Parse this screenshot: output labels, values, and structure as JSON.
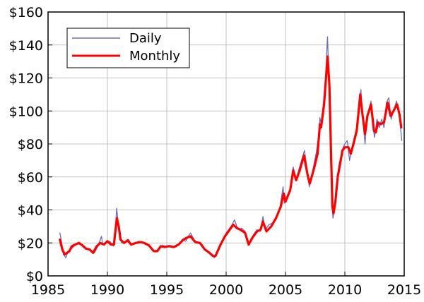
{
  "chart_data": {
    "type": "line",
    "title": "",
    "xlabel": "",
    "ylabel": "",
    "xlim": [
      1985,
      2015
    ],
    "ylim": [
      0,
      160
    ],
    "x_ticks": [
      1985,
      1990,
      1995,
      2000,
      2005,
      2010,
      2015
    ],
    "x_tick_labels": [
      "1985",
      "1990",
      "1995",
      "2000",
      "2005",
      "2010",
      "2015"
    ],
    "y_ticks": [
      0,
      20,
      40,
      60,
      80,
      100,
      120,
      140,
      160
    ],
    "y_tick_labels": [
      "$0",
      "$20",
      "$40",
      "$60",
      "$80",
      "$100",
      "$120",
      "$140",
      "$160"
    ],
    "grid": true,
    "legend": "top-left",
    "series": [
      {
        "name": "Daily",
        "color": "#6b6bbf",
        "points": [
          [
            1986.0,
            26
          ],
          [
            1986.15,
            20
          ],
          [
            1986.3,
            13
          ],
          [
            1986.5,
            11
          ],
          [
            1986.7,
            15
          ],
          [
            1986.9,
            16
          ],
          [
            1987.2,
            18
          ],
          [
            1987.5,
            20
          ],
          [
            1987.8,
            19
          ],
          [
            1988.0,
            17
          ],
          [
            1988.3,
            16.5
          ],
          [
            1988.6,
            15
          ],
          [
            1988.9,
            14
          ],
          [
            1989.2,
            18
          ],
          [
            1989.5,
            24
          ],
          [
            1989.6,
            19
          ],
          [
            1989.9,
            20
          ],
          [
            1990.2,
            21
          ],
          [
            1990.5,
            18
          ],
          [
            1990.6,
            24
          ],
          [
            1990.7,
            32
          ],
          [
            1990.78,
            41
          ],
          [
            1990.9,
            33
          ],
          [
            1991.05,
            28
          ],
          [
            1991.2,
            20
          ],
          [
            1991.5,
            21
          ],
          [
            1991.8,
            22
          ],
          [
            1992.0,
            19
          ],
          [
            1992.3,
            19.5
          ],
          [
            1992.6,
            21
          ],
          [
            1992.9,
            20
          ],
          [
            1993.2,
            20
          ],
          [
            1993.5,
            18.5
          ],
          [
            1993.8,
            16
          ],
          [
            1994.0,
            14.5
          ],
          [
            1994.3,
            16
          ],
          [
            1994.6,
            18.5
          ],
          [
            1994.9,
            18
          ],
          [
            1995.2,
            18.5
          ],
          [
            1995.5,
            18
          ],
          [
            1995.8,
            17.5
          ],
          [
            1996.0,
            19
          ],
          [
            1996.3,
            22
          ],
          [
            1996.6,
            21
          ],
          [
            1996.9,
            25
          ],
          [
            1997.0,
            26
          ],
          [
            1997.3,
            22
          ],
          [
            1997.6,
            20
          ],
          [
            1997.9,
            19
          ],
          [
            1998.2,
            16
          ],
          [
            1998.5,
            14
          ],
          [
            1998.8,
            12.5
          ],
          [
            1999.0,
            11
          ],
          [
            1999.2,
            13
          ],
          [
            1999.5,
            19
          ],
          [
            1999.8,
            23
          ],
          [
            2000.0,
            26
          ],
          [
            2000.3,
            29
          ],
          [
            2000.5,
            31
          ],
          [
            2000.7,
            34
          ],
          [
            2000.9,
            30
          ],
          [
            2001.1,
            28
          ],
          [
            2001.3,
            29
          ],
          [
            2001.6,
            27
          ],
          [
            2001.9,
            19
          ],
          [
            2002.0,
            20
          ],
          [
            2002.3,
            25
          ],
          [
            2002.6,
            28
          ],
          [
            2002.9,
            27
          ],
          [
            2003.1,
            36
          ],
          [
            2003.3,
            28
          ],
          [
            2003.6,
            31
          ],
          [
            2003.9,
            32
          ],
          [
            2004.2,
            36
          ],
          [
            2004.5,
            40
          ],
          [
            2004.8,
            54
          ],
          [
            2004.9,
            44
          ],
          [
            2005.1,
            47
          ],
          [
            2005.4,
            53
          ],
          [
            2005.65,
            66
          ],
          [
            2005.9,
            58
          ],
          [
            2006.1,
            64
          ],
          [
            2006.35,
            70
          ],
          [
            2006.6,
            76
          ],
          [
            2006.9,
            61
          ],
          [
            2007.0,
            54
          ],
          [
            2007.3,
            64
          ],
          [
            2007.6,
            75
          ],
          [
            2007.8,
            85
          ],
          [
            2007.9,
            96
          ],
          [
            2008.0,
            92
          ],
          [
            2008.2,
            105
          ],
          [
            2008.4,
            122
          ],
          [
            2008.5,
            140
          ],
          [
            2008.54,
            145
          ],
          [
            2008.65,
            120
          ],
          [
            2008.8,
            80
          ],
          [
            2008.9,
            55
          ],
          [
            2008.95,
            40
          ],
          [
            2009.0,
            35
          ],
          [
            2009.1,
            40
          ],
          [
            2009.25,
            48
          ],
          [
            2009.4,
            62
          ],
          [
            2009.55,
            69
          ],
          [
            2009.7,
            72
          ],
          [
            2009.85,
            78
          ],
          [
            2010.0,
            80
          ],
          [
            2010.2,
            82
          ],
          [
            2010.4,
            70
          ],
          [
            2010.6,
            78
          ],
          [
            2010.8,
            84
          ],
          [
            2011.0,
            90
          ],
          [
            2011.2,
            105
          ],
          [
            2011.35,
            113
          ],
          [
            2011.5,
            95
          ],
          [
            2011.7,
            80
          ],
          [
            2011.85,
            96
          ],
          [
            2012.0,
            100
          ],
          [
            2012.2,
            106
          ],
          [
            2012.35,
            92
          ],
          [
            2012.5,
            84
          ],
          [
            2012.7,
            95
          ],
          [
            2012.9,
            90
          ],
          [
            2013.1,
            95
          ],
          [
            2013.3,
            90
          ],
          [
            2013.5,
            105
          ],
          [
            2013.7,
            108
          ],
          [
            2013.9,
            95
          ],
          [
            2014.1,
            100
          ],
          [
            2014.35,
            106
          ],
          [
            2014.5,
            101
          ],
          [
            2014.65,
            93
          ],
          [
            2014.8,
            82
          ]
        ]
      },
      {
        "name": "Monthly",
        "color": "#ff0000",
        "points": [
          [
            1986.0,
            22
          ],
          [
            1986.2,
            16
          ],
          [
            1986.4,
            13
          ],
          [
            1986.6,
            14
          ],
          [
            1986.8,
            15
          ],
          [
            1987.0,
            18
          ],
          [
            1987.3,
            19
          ],
          [
            1987.6,
            20
          ],
          [
            1987.9,
            18.5
          ],
          [
            1988.2,
            16.5
          ],
          [
            1988.5,
            16
          ],
          [
            1988.8,
            14
          ],
          [
            1989.1,
            18
          ],
          [
            1989.4,
            20
          ],
          [
            1989.7,
            19
          ],
          [
            1990.0,
            21
          ],
          [
            1990.3,
            19
          ],
          [
            1990.55,
            19
          ],
          [
            1990.7,
            29
          ],
          [
            1990.8,
            35
          ],
          [
            1990.95,
            30
          ],
          [
            1991.1,
            22
          ],
          [
            1991.4,
            20
          ],
          [
            1991.7,
            21.5
          ],
          [
            1992.0,
            19
          ],
          [
            1992.4,
            20
          ],
          [
            1992.8,
            20.5
          ],
          [
            1993.1,
            20
          ],
          [
            1993.5,
            18.5
          ],
          [
            1993.9,
            15
          ],
          [
            1994.2,
            15
          ],
          [
            1994.5,
            18
          ],
          [
            1994.8,
            17.5
          ],
          [
            1995.2,
            18
          ],
          [
            1995.6,
            17.5
          ],
          [
            1996.0,
            19
          ],
          [
            1996.4,
            22
          ],
          [
            1996.8,
            23.5
          ],
          [
            1997.0,
            24
          ],
          [
            1997.4,
            20.5
          ],
          [
            1997.8,
            20
          ],
          [
            1998.2,
            16
          ],
          [
            1998.6,
            14
          ],
          [
            1998.9,
            12
          ],
          [
            1999.1,
            12
          ],
          [
            1999.5,
            18.5
          ],
          [
            1999.9,
            24
          ],
          [
            2000.2,
            27
          ],
          [
            2000.6,
            31
          ],
          [
            2000.9,
            29
          ],
          [
            2001.2,
            28
          ],
          [
            2001.6,
            26
          ],
          [
            2001.9,
            19
          ],
          [
            2002.2,
            23
          ],
          [
            2002.6,
            27
          ],
          [
            2002.9,
            28
          ],
          [
            2003.1,
            33
          ],
          [
            2003.4,
            27
          ],
          [
            2003.8,
            30
          ],
          [
            2004.2,
            35
          ],
          [
            2004.6,
            42
          ],
          [
            2004.85,
            50
          ],
          [
            2005.0,
            45
          ],
          [
            2005.4,
            52
          ],
          [
            2005.65,
            64
          ],
          [
            2005.9,
            58
          ],
          [
            2006.2,
            64
          ],
          [
            2006.55,
            73
          ],
          [
            2006.9,
            60
          ],
          [
            2007.05,
            56
          ],
          [
            2007.4,
            65
          ],
          [
            2007.7,
            74
          ],
          [
            2007.9,
            92
          ],
          [
            2008.0,
            90
          ],
          [
            2008.25,
            104
          ],
          [
            2008.45,
            124
          ],
          [
            2008.55,
            133
          ],
          [
            2008.7,
            115
          ],
          [
            2008.85,
            70
          ],
          [
            2008.95,
            42
          ],
          [
            2009.05,
            38
          ],
          [
            2009.2,
            45
          ],
          [
            2009.4,
            60
          ],
          [
            2009.6,
            68
          ],
          [
            2009.8,
            76
          ],
          [
            2010.0,
            78
          ],
          [
            2010.3,
            78
          ],
          [
            2010.5,
            74
          ],
          [
            2010.8,
            82
          ],
          [
            2011.0,
            88
          ],
          [
            2011.3,
            110
          ],
          [
            2011.5,
            97
          ],
          [
            2011.7,
            86
          ],
          [
            2011.9,
            97
          ],
          [
            2012.2,
            104
          ],
          [
            2012.45,
            88
          ],
          [
            2012.6,
            87
          ],
          [
            2012.8,
            93
          ],
          [
            2013.0,
            92
          ],
          [
            2013.3,
            93
          ],
          [
            2013.6,
            105
          ],
          [
            2013.85,
            97
          ],
          [
            2014.1,
            100
          ],
          [
            2014.4,
            104
          ],
          [
            2014.6,
            98
          ],
          [
            2014.75,
            90
          ]
        ]
      }
    ]
  }
}
